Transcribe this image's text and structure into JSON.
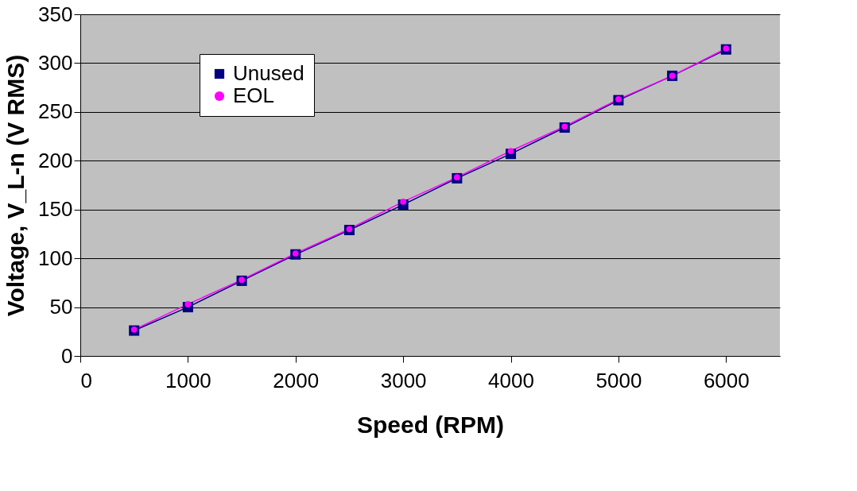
{
  "chart_data": {
    "type": "line",
    "xlabel": "Speed (RPM)",
    "ylabel": "Voltage, V_L-n (V RMS)",
    "x": [
      500,
      1000,
      1500,
      2000,
      2500,
      3000,
      3500,
      4000,
      4500,
      5000,
      5500,
      6000
    ],
    "series": [
      {
        "name": "Unused",
        "color": "#000080",
        "marker": "square",
        "values": [
          26,
          50,
          77,
          104,
          129,
          155,
          182,
          207,
          234,
          262,
          287,
          314
        ]
      },
      {
        "name": "EOL",
        "color": "#ff00ff",
        "marker": "circle",
        "values": [
          27,
          53,
          78,
          105,
          130,
          158,
          183,
          210,
          235,
          263,
          287,
          315
        ]
      }
    ],
    "xlim": [
      0,
      6500
    ],
    "xticks": [
      0,
      1000,
      2000,
      3000,
      4000,
      5000,
      6000
    ],
    "ylim": [
      0,
      350
    ],
    "yticks": [
      0,
      50,
      100,
      150,
      200,
      250,
      300,
      350
    ],
    "grid": "y",
    "legend": "top left",
    "line_style": "solid"
  }
}
